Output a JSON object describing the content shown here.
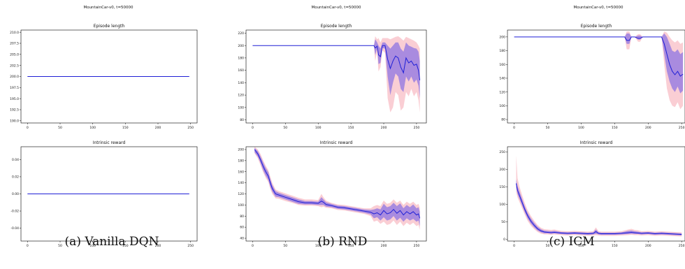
{
  "captions": [
    "(a) Vanilla DQN",
    "(b) RND",
    "(c) ICM"
  ],
  "colors": {
    "mean_line": "#1f1fd6",
    "band_inner": "#9a7fe0",
    "band_outer": "#f9c6cc",
    "axis": "#000000"
  },
  "chart_data": [
    {
      "type": "line",
      "suptitle": "MountainCar-v0, t=50000",
      "title": "Episode length",
      "xlim": [
        -10,
        260
      ],
      "ylim": [
        189.5,
        210.5
      ],
      "xticks": [
        0,
        50,
        100,
        150,
        200,
        250
      ],
      "yticks": [
        190.0,
        192.5,
        195.0,
        197.5,
        200.0,
        202.5,
        205.0,
        207.5,
        210.0
      ],
      "ytick_labels": [
        "190.0",
        "192.5",
        "195.0",
        "197.5",
        "200.0",
        "202.5",
        "205.0",
        "207.5",
        "210.0"
      ],
      "series": [
        {
          "x": [
            0,
            248
          ],
          "y": [
            200,
            200
          ]
        }
      ]
    },
    {
      "type": "line",
      "title": "Intrinsic reward",
      "xlim": [
        -10,
        260
      ],
      "ylim": [
        -0.055,
        0.055
      ],
      "xticks": [
        0,
        50,
        100,
        150,
        200,
        250
      ],
      "yticks": [
        -0.04,
        -0.02,
        0.0,
        0.02,
        0.04
      ],
      "ytick_labels": [
        "-0.04",
        "-0.02",
        "0.00",
        "0.02",
        "0.04"
      ],
      "series": [
        {
          "x": [
            0,
            248
          ],
          "y": [
            0,
            0
          ]
        }
      ]
    },
    {
      "type": "line",
      "suptitle": "MountainCar-v0, t=50000",
      "title": "Episode length",
      "xlim": [
        -10,
        265
      ],
      "ylim": [
        75,
        225
      ],
      "xticks": [
        0,
        50,
        100,
        150,
        200,
        250
      ],
      "yticks": [
        80,
        100,
        120,
        140,
        160,
        180,
        200,
        220
      ],
      "ytick_labels": [
        "80",
        "100",
        "120",
        "140",
        "160",
        "180",
        "200",
        "220"
      ],
      "series": [
        {
          "x": [
            0,
            185,
            187,
            190,
            192,
            195,
            198,
            202,
            206,
            210,
            214,
            218,
            222,
            226,
            230,
            234,
            238,
            242,
            246,
            250,
            253,
            255
          ],
          "y": [
            200,
            200,
            196,
            199,
            185,
            182,
            200,
            200,
            178,
            163,
            175,
            183,
            180,
            165,
            156,
            180,
            172,
            175,
            168,
            170,
            160,
            144
          ],
          "lo": [
            200,
            200,
            185,
            195,
            170,
            172,
            196,
            195,
            150,
            120,
            140,
            155,
            150,
            130,
            125,
            150,
            142,
            150,
            140,
            145,
            135,
            115
          ],
          "hi": [
            200,
            200,
            210,
            205,
            200,
            195,
            205,
            205,
            200,
            195,
            200,
            205,
            205,
            195,
            190,
            205,
            200,
            198,
            196,
            195,
            190,
            175
          ],
          "lo2": [
            200,
            200,
            175,
            190,
            158,
            165,
            192,
            188,
            115,
            92,
            100,
            125,
            120,
            95,
            100,
            125,
            118,
            130,
            118,
            125,
            112,
            92
          ],
          "hi2": [
            200,
            200,
            215,
            210,
            212,
            205,
            212,
            212,
            212,
            210,
            212,
            214,
            215,
            212,
            208,
            214,
            212,
            210,
            208,
            205,
            200,
            195
          ]
        }
      ]
    },
    {
      "type": "line",
      "title": "Intrinsic reward",
      "xlim": [
        -10,
        265
      ],
      "ylim": [
        35,
        205
      ],
      "xticks": [
        0,
        50,
        100,
        150,
        200,
        250
      ],
      "yticks": [
        40,
        60,
        80,
        100,
        120,
        140,
        160,
        180,
        200
      ],
      "ytick_labels": [
        "40",
        "60",
        "80",
        "100",
        "120",
        "140",
        "160",
        "180",
        "200"
      ],
      "series": [
        {
          "x": [
            3,
            8,
            12,
            16,
            20,
            24,
            27,
            30,
            35,
            40,
            50,
            60,
            70,
            80,
            90,
            100,
            105,
            108,
            112,
            120,
            130,
            140,
            150,
            160,
            170,
            180,
            185,
            190,
            195,
            200,
            205,
            210,
            215,
            220,
            225,
            230,
            235,
            240,
            245,
            250,
            253,
            255
          ],
          "y": [
            200,
            192,
            182,
            170,
            160,
            152,
            140,
            130,
            120,
            118,
            114,
            110,
            106,
            104,
            104,
            103,
            107,
            105,
            101,
            99,
            96,
            95,
            93,
            91,
            89,
            87,
            84,
            86,
            82,
            90,
            84,
            86,
            92,
            85,
            90,
            82,
            88,
            84,
            88,
            82,
            84,
            76
          ],
          "lo": [
            195,
            187,
            176,
            163,
            153,
            145,
            133,
            124,
            115,
            114,
            110,
            106,
            102,
            101,
            101,
            100,
            100,
            100,
            97,
            96,
            93,
            92,
            90,
            88,
            86,
            83,
            76,
            78,
            72,
            78,
            72,
            74,
            80,
            72,
            77,
            70,
            76,
            72,
            75,
            70,
            72,
            62
          ],
          "hi": [
            203,
            197,
            188,
            177,
            167,
            159,
            147,
            136,
            125,
            122,
            118,
            114,
            110,
            107,
            107,
            106,
            114,
            110,
            105,
            102,
            99,
            98,
            96,
            94,
            92,
            91,
            92,
            94,
            92,
            102,
            96,
            98,
            104,
            98,
            103,
            94,
            100,
            96,
            101,
            94,
            96,
            88
          ],
          "lo2": [
            193,
            184,
            172,
            159,
            149,
            141,
            129,
            120,
            112,
            111,
            107,
            104,
            100,
            99,
            99,
            98,
            96,
            97,
            95,
            94,
            91,
            90,
            88,
            86,
            84,
            80,
            70,
            72,
            66,
            70,
            64,
            66,
            72,
            64,
            70,
            62,
            68,
            64,
            68,
            62,
            64,
            55
          ],
          "hi2": [
            205,
            200,
            192,
            181,
            171,
            163,
            151,
            140,
            128,
            125,
            121,
            117,
            113,
            110,
            110,
            109,
            120,
            114,
            108,
            104,
            101,
            100,
            98,
            96,
            94,
            94,
            98,
            100,
            98,
            108,
            102,
            104,
            110,
            104,
            108,
            100,
            106,
            102,
            106,
            100,
            102,
            95
          ]
        }
      ]
    },
    {
      "type": "line",
      "suptitle": "MountainCar-v0, t=50000",
      "title": "Episode length",
      "xlim": [
        -10,
        255
      ],
      "ylim": [
        75,
        210
      ],
      "xticks": [
        0,
        50,
        100,
        150,
        200,
        250
      ],
      "yticks": [
        80,
        100,
        120,
        140,
        160,
        180,
        200
      ],
      "ytick_labels": [
        "80",
        "100",
        "120",
        "140",
        "160",
        "180",
        "200"
      ],
      "series": [
        {
          "x": [
            0,
            165,
            168,
            172,
            175,
            180,
            185,
            188,
            192,
            220,
            224,
            228,
            232,
            236,
            240,
            244,
            248,
            252
          ],
          "y": [
            200,
            200,
            195,
            195,
            200,
            200,
            198,
            198,
            200,
            200,
            190,
            175,
            160,
            150,
            145,
            150,
            143,
            146
          ],
          "lo": [
            200,
            200,
            190,
            190,
            200,
            200,
            196,
            196,
            200,
            200,
            175,
            150,
            135,
            125,
            120,
            128,
            118,
            122
          ],
          "hi": [
            200,
            200,
            205,
            205,
            200,
            200,
            202,
            202,
            200,
            200,
            205,
            200,
            190,
            180,
            178,
            182,
            175,
            178
          ],
          "lo2": [
            200,
            200,
            182,
            182,
            200,
            200,
            193,
            193,
            200,
            200,
            160,
            125,
            108,
            100,
            98,
            105,
            95,
            100
          ],
          "hi2": [
            200,
            200,
            208,
            208,
            200,
            200,
            204,
            204,
            200,
            200,
            208,
            206,
            200,
            195,
            192,
            195,
            190,
            192
          ]
        }
      ]
    },
    {
      "type": "line",
      "title": "Intrinsic reward",
      "xlim": [
        -10,
        255
      ],
      "ylim": [
        -5,
        265
      ],
      "xticks": [
        0,
        50,
        100,
        150,
        200,
        250
      ],
      "yticks": [
        0,
        50,
        100,
        150,
        200,
        250
      ],
      "ytick_labels": [
        "0",
        "50",
        "100",
        "150",
        "200",
        "250"
      ],
      "series": [
        {
          "x": [
            3,
            5,
            8,
            12,
            16,
            20,
            25,
            30,
            35,
            40,
            45,
            50,
            55,
            60,
            70,
            80,
            90,
            100,
            110,
            118,
            122,
            126,
            130,
            140,
            150,
            160,
            170,
            175,
            180,
            185,
            190,
            200,
            210,
            220,
            230,
            240,
            250
          ],
          "y": [
            160,
            140,
            125,
            105,
            85,
            68,
            52,
            40,
            30,
            24,
            21,
            20,
            19,
            20,
            18,
            17,
            18,
            17,
            16,
            17,
            22,
            17,
            16,
            16,
            16,
            17,
            19,
            20,
            19,
            18,
            17,
            18,
            16,
            17,
            16,
            15,
            14
          ],
          "lo": [
            148,
            130,
            115,
            96,
            77,
            60,
            45,
            34,
            25,
            20,
            17,
            17,
            16,
            17,
            15,
            14,
            15,
            14,
            13,
            14,
            16,
            14,
            13,
            13,
            13,
            14,
            15,
            16,
            15,
            15,
            14,
            15,
            13,
            14,
            13,
            12,
            11
          ],
          "hi": [
            172,
            152,
            136,
            115,
            94,
            76,
            60,
            47,
            36,
            29,
            25,
            24,
            23,
            24,
            21,
            20,
            21,
            20,
            19,
            20,
            28,
            20,
            19,
            19,
            19,
            20,
            24,
            25,
            23,
            22,
            20,
            21,
            19,
            20,
            19,
            18,
            17
          ],
          "lo2": [
            135,
            120,
            106,
            88,
            70,
            53,
            39,
            29,
            21,
            16,
            14,
            14,
            13,
            14,
            12,
            11,
            12,
            11,
            10,
            11,
            12,
            11,
            10,
            10,
            10,
            11,
            12,
            13,
            12,
            12,
            11,
            12,
            10,
            11,
            10,
            9,
            8
          ],
          "hi2": [
            240,
            175,
            150,
            126,
            103,
            84,
            67,
            53,
            41,
            33,
            29,
            28,
            27,
            28,
            24,
            23,
            24,
            23,
            22,
            23,
            34,
            23,
            22,
            22,
            22,
            23,
            28,
            30,
            27,
            26,
            23,
            24,
            22,
            23,
            22,
            21,
            20
          ]
        }
      ]
    }
  ]
}
